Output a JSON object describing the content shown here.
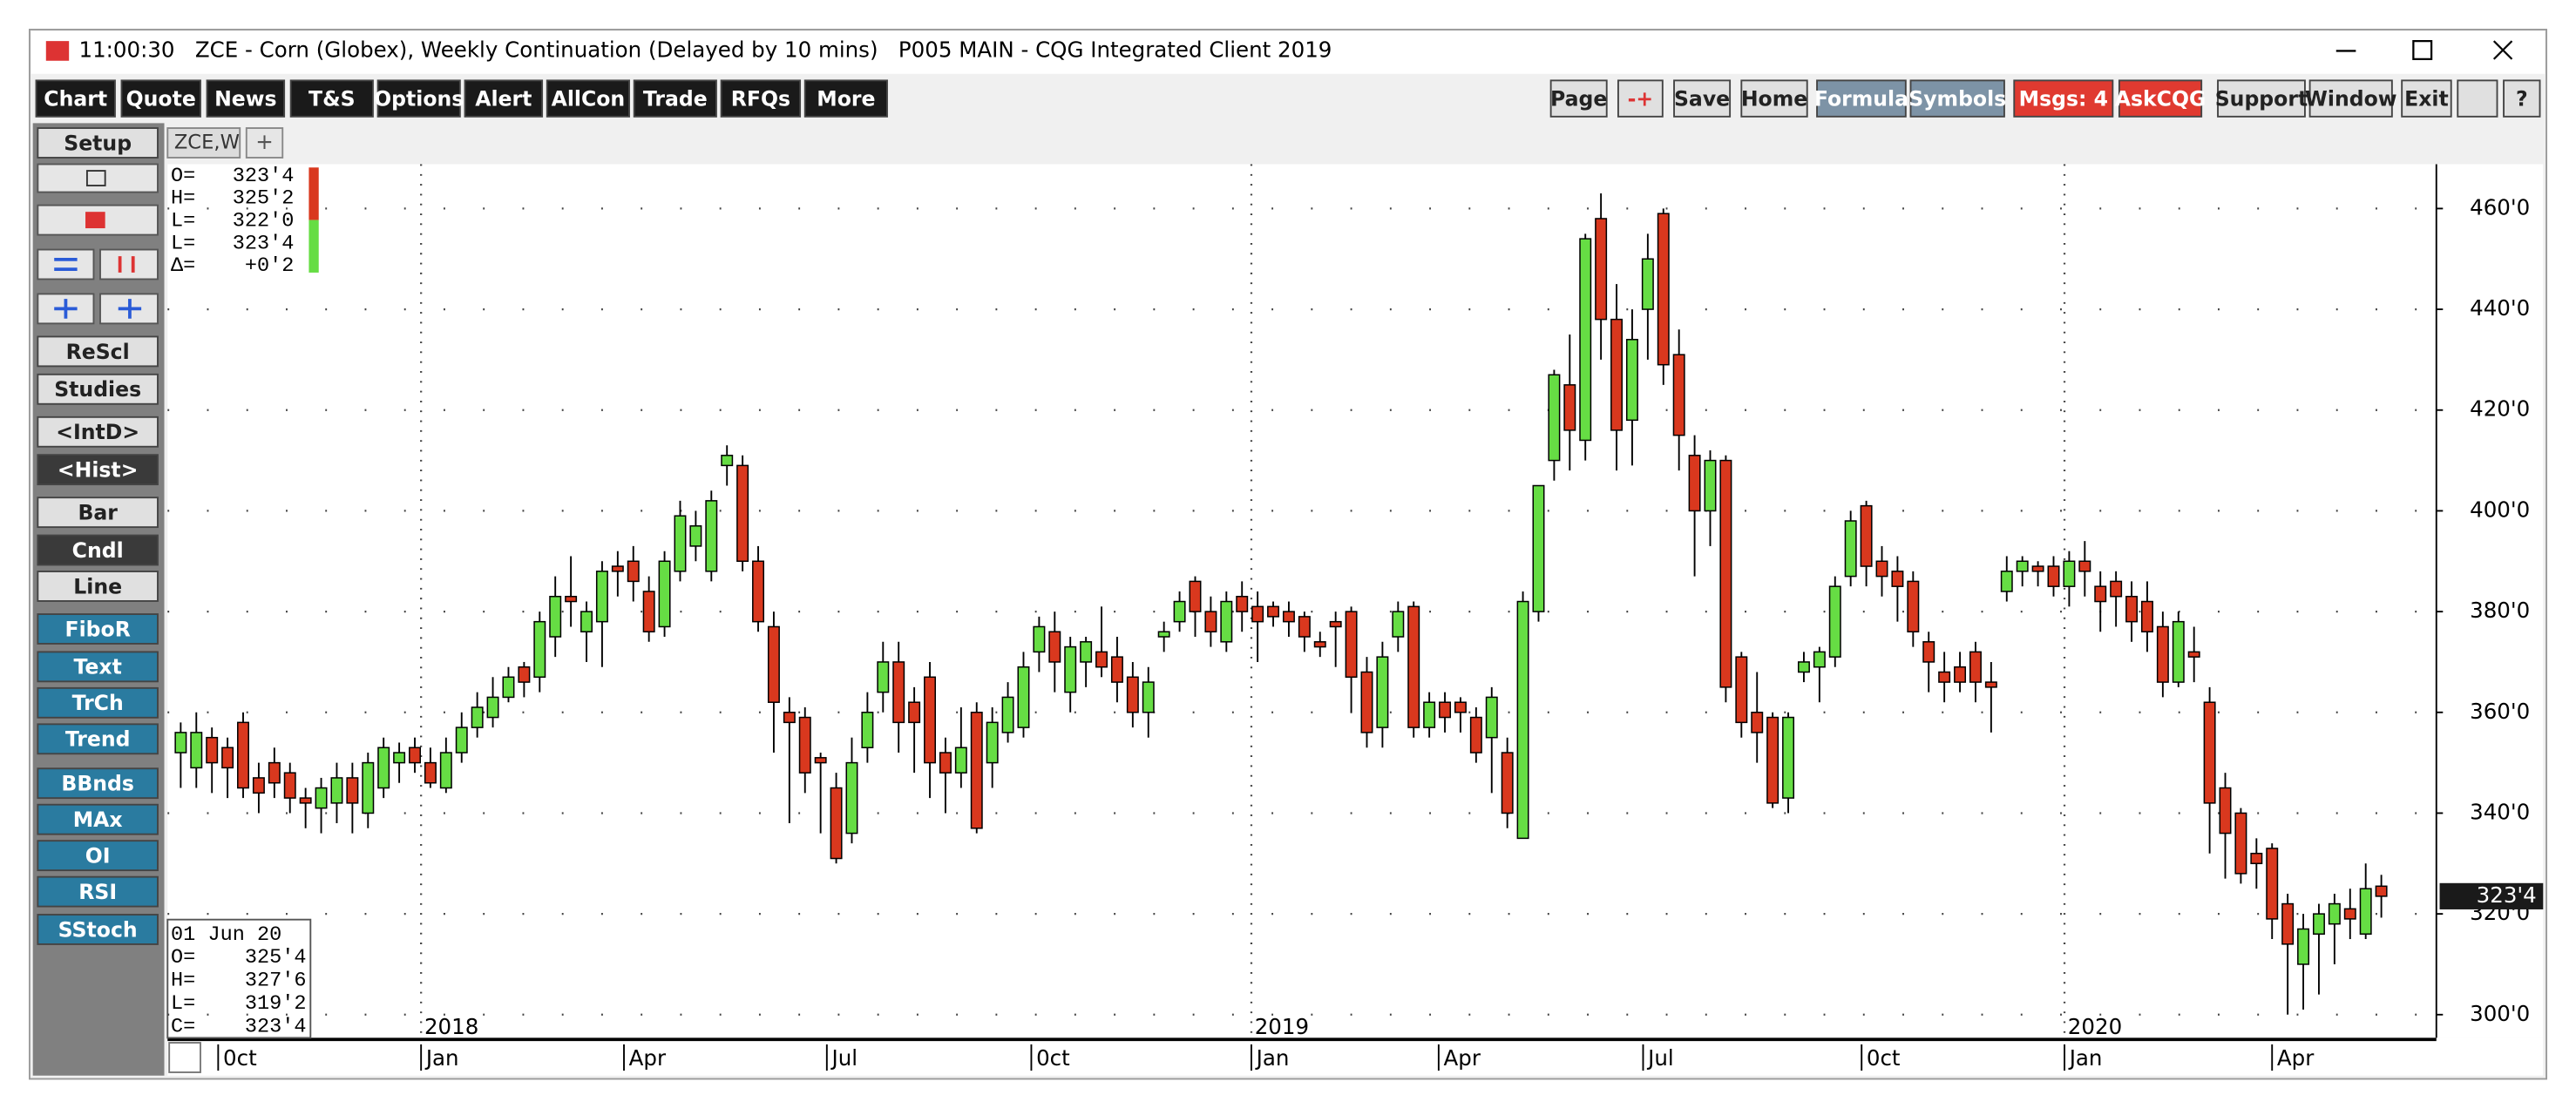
{
  "window": {
    "title": "11:00:30   ZCE - Corn (Globex), Weekly Continuation (Delayed by 10 mins)   P005 MAIN - CQG Integrated Client 2019"
  },
  "toolbar": {
    "left": [
      "Chart",
      "Quote",
      "News",
      "T&S",
      "Options",
      "Alert",
      "AllCon",
      "Trade",
      "RFQs",
      "More"
    ],
    "right": [
      "Page",
      "-+",
      "Save",
      "Home",
      "Formula",
      "Symbols",
      "Msgs: 4",
      "AskCQG",
      "Support",
      "Window",
      "Exit",
      "?"
    ]
  },
  "sidebar": [
    "Setup",
    "ReScl",
    "Studies",
    "<IntD>",
    "<Hist>",
    "Bar",
    "Cndl",
    "Line",
    "FiboR",
    "Text",
    "TrCh",
    "Trend",
    "BBnds",
    "MAx",
    "OI",
    "RSI",
    "SStoch"
  ],
  "tabs": [
    "ZCE,W",
    "+"
  ],
  "info_top": [
    "O=   323'4",
    "H=   325'2",
    "L=   322'0",
    "L=   323'4",
    "Δ=    +0'2"
  ],
  "info_bottom": [
    "01 Jun 20",
    "O=    325'4",
    "H=    327'6",
    "L=    319'2",
    "C=    323'4"
  ],
  "chart_data": {
    "type": "candlestick",
    "up_color": "#66dd44",
    "down_color": "#d9381e",
    "grid": true,
    "open": [
      352,
      349,
      355,
      353,
      358,
      347,
      350,
      348,
      343,
      341,
      342,
      347,
      340,
      345,
      350,
      353,
      350,
      345,
      352,
      357,
      359,
      363,
      369,
      367,
      375,
      383,
      376,
      378,
      389,
      390,
      384,
      377,
      388,
      393,
      388,
      409,
      409,
      390,
      377,
      360,
      359,
      351,
      345,
      336,
      353,
      364,
      370,
      362,
      367,
      352,
      348,
      360,
      350,
      356,
      357,
      372,
      376,
      364,
      370,
      372,
      371,
      367,
      360,
      375,
      378,
      386,
      380,
      374,
      383,
      381,
      381,
      380,
      379,
      374,
      378,
      380,
      368,
      357,
      375,
      381,
      357,
      362,
      362,
      359,
      355,
      352,
      335,
      380,
      410,
      425,
      414,
      458,
      438,
      418,
      440,
      459,
      431,
      411,
      400,
      410,
      371,
      360,
      359,
      343,
      368,
      369,
      371,
      387,
      401,
      390,
      388,
      386,
      374,
      368,
      369,
      372,
      366,
      384,
      388,
      389,
      389,
      385,
      390,
      385,
      386,
      383,
      382,
      377,
      366,
      372,
      362,
      345,
      340,
      332,
      333,
      322,
      310,
      316,
      318,
      321,
      316,
      325.5
    ],
    "high": [
      358,
      360,
      357,
      355,
      360,
      350,
      353,
      350,
      345,
      347,
      350,
      350,
      352,
      355,
      354,
      355,
      353,
      355,
      360,
      364,
      367,
      369,
      370,
      380,
      387,
      391,
      382,
      390,
      392,
      393,
      387,
      392,
      402,
      400,
      404,
      413,
      411,
      393,
      380,
      363,
      361,
      352,
      348,
      355,
      364,
      374,
      374,
      365,
      370,
      355,
      361,
      362,
      361,
      366,
      372,
      379,
      380,
      375,
      375,
      381,
      375,
      370,
      369,
      378,
      384,
      387,
      383,
      384,
      386,
      384,
      382,
      382,
      380,
      376,
      380,
      381,
      371,
      374,
      382,
      382,
      364,
      364,
      363,
      361,
      365,
      355,
      384,
      405,
      428,
      435,
      455,
      463,
      445,
      440,
      455,
      460,
      436,
      415,
      412,
      411,
      372,
      368,
      360,
      360,
      372,
      373,
      387,
      400,
      402,
      393,
      391,
      388,
      376,
      372,
      372,
      374,
      370,
      391,
      391,
      390,
      391,
      392,
      394,
      388,
      388,
      386,
      386,
      380,
      380,
      377,
      365,
      348,
      341,
      335,
      334,
      324,
      320,
      322,
      324,
      325,
      330,
      327.75
    ],
    "low": [
      345,
      345,
      344,
      343,
      343,
      340,
      343,
      340,
      337,
      336,
      338,
      336,
      337,
      343,
      346,
      348,
      345,
      344,
      350,
      355,
      357,
      362,
      363,
      364,
      371,
      377,
      370,
      369,
      383,
      382,
      374,
      375,
      386,
      390,
      386,
      405,
      388,
      376,
      352,
      338,
      344,
      336,
      330,
      334,
      350,
      360,
      352,
      348,
      343,
      340,
      345,
      336,
      345,
      354,
      355,
      368,
      364,
      360,
      365,
      367,
      362,
      357,
      355,
      372,
      376,
      375,
      373,
      372,
      376,
      370,
      377,
      375,
      372,
      371,
      369,
      360,
      353,
      353,
      372,
      355,
      355,
      356,
      356,
      350,
      344,
      337,
      335,
      378,
      406,
      408,
      410,
      430,
      408,
      409,
      430,
      425,
      408,
      387,
      393,
      362,
      355,
      350,
      341,
      340,
      366,
      362,
      369,
      385,
      385,
      383,
      378,
      373,
      364,
      362,
      364,
      362,
      356,
      382,
      385,
      385,
      383,
      381,
      383,
      376,
      377,
      374,
      372,
      363,
      365,
      366,
      332,
      327,
      326,
      325,
      315,
      300,
      301,
      304,
      310,
      315,
      315,
      319.25
    ],
    "close": [
      356,
      356,
      350,
      349,
      345,
      344,
      346,
      343,
      342,
      345,
      347,
      342,
      350,
      353,
      352,
      350,
      346,
      352,
      357,
      361,
      363,
      367,
      366,
      378,
      383,
      382,
      380,
      388,
      388,
      386,
      376,
      390,
      399,
      397,
      402,
      411,
      390,
      378,
      362,
      358,
      348,
      350,
      331,
      350,
      360,
      370,
      358,
      358,
      350,
      348,
      353,
      337,
      358,
      363,
      369,
      377,
      370,
      373,
      374,
      369,
      366,
      360,
      366,
      376,
      382,
      380,
      376,
      382,
      380,
      378,
      379,
      378,
      375,
      373,
      377,
      367,
      356,
      371,
      380,
      357,
      362,
      359,
      360,
      352,
      363,
      340,
      382,
      405,
      427,
      416,
      454,
      438,
      416,
      434,
      450,
      429,
      415,
      400,
      410,
      365,
      358,
      356,
      342,
      359,
      370,
      372,
      385,
      398,
      389,
      387,
      385,
      376,
      370,
      366,
      366,
      366,
      365,
      388,
      390,
      388,
      385,
      390,
      388,
      382,
      383,
      378,
      376,
      366,
      378,
      371,
      342,
      336,
      328,
      330,
      319,
      314,
      317,
      320,
      322,
      319,
      325,
      323.5
    ],
    "ylim": [
      295.4,
      468.8
    ],
    "yticks": [
      {
        "value": 300,
        "label": "300'0"
      },
      {
        "value": 320,
        "label": "320'0"
      },
      {
        "value": 340,
        "label": "340'0"
      },
      {
        "value": 360,
        "label": "360'0"
      },
      {
        "value": 380,
        "label": "380'0"
      },
      {
        "value": 400,
        "label": "400'0"
      },
      {
        "value": 420,
        "label": "420'0"
      },
      {
        "value": 440,
        "label": "440'0"
      },
      {
        "value": 460,
        "label": "460'0"
      }
    ],
    "xticks": [
      {
        "value": 2.4,
        "label": "0ct"
      },
      {
        "value": 15.4,
        "label": "Jan"
      },
      {
        "value": 28.4,
        "label": "Apr"
      },
      {
        "value": 41.4,
        "label": "Jul"
      },
      {
        "value": 54.5,
        "label": "0ct"
      },
      {
        "value": 68.6,
        "label": "Jan"
      },
      {
        "value": 80.6,
        "label": "Apr"
      },
      {
        "value": 93.7,
        "label": "Jul"
      },
      {
        "value": 107.7,
        "label": "0ct"
      },
      {
        "value": 120.7,
        "label": "Jan"
      },
      {
        "value": 134,
        "label": "Apr"
      }
    ],
    "year_ticks": [
      {
        "value": 15.4,
        "label": "2018"
      },
      {
        "value": 68.6,
        "label": "2019"
      },
      {
        "value": 120.7,
        "label": "2020"
      }
    ],
    "last_price": {
      "value": 323.5,
      "label": "323'4"
    }
  }
}
